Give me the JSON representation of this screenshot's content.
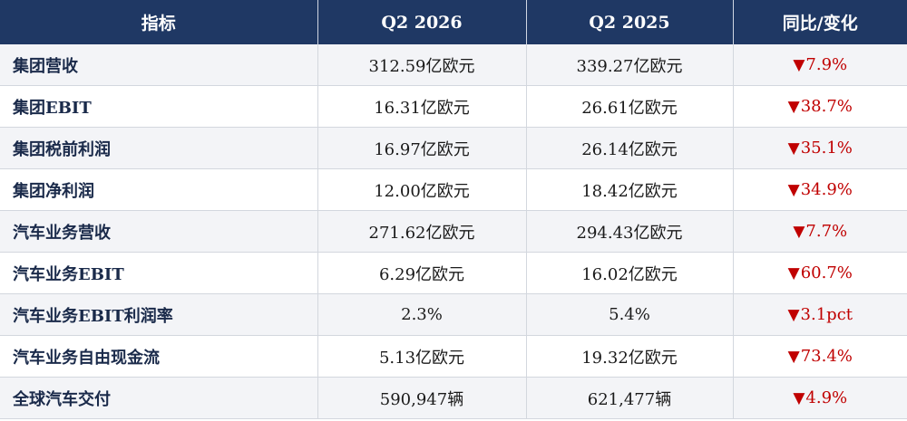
{
  "columns": [
    "指标",
    "Q2 2026",
    "Q2 2025",
    "同比/变化"
  ],
  "arrow_glyph": "▼",
  "rows": [
    {
      "metric": "集团营收",
      "q2_2026": "312.59亿欧元",
      "q2_2025": "339.27亿欧元",
      "change": "7.9%"
    },
    {
      "metric": "集团EBIT",
      "q2_2026": "16.31亿欧元",
      "q2_2025": "26.61亿欧元",
      "change": "38.7%"
    },
    {
      "metric": "集团税前利润",
      "q2_2026": "16.97亿欧元",
      "q2_2025": "26.14亿欧元",
      "change": "35.1%"
    },
    {
      "metric": "集团净利润",
      "q2_2026": "12.00亿欧元",
      "q2_2025": "18.42亿欧元",
      "change": "34.9%"
    },
    {
      "metric": "汽车业务营收",
      "q2_2026": "271.62亿欧元",
      "q2_2025": "294.43亿欧元",
      "change": "7.7%"
    },
    {
      "metric": "汽车业务EBIT",
      "q2_2026": "6.29亿欧元",
      "q2_2025": "16.02亿欧元",
      "change": "60.7%"
    },
    {
      "metric": "汽车业务EBIT利润率",
      "q2_2026": "2.3%",
      "q2_2025": "5.4%",
      "change": "3.1pct"
    },
    {
      "metric": "汽车业务自由现金流",
      "q2_2026": "5.13亿欧元",
      "q2_2025": "19.32亿欧元",
      "change": "73.4%"
    },
    {
      "metric": "全球汽车交付",
      "q2_2026": "590,947辆",
      "q2_2025": "621,477辆",
      "change": "4.9%"
    }
  ],
  "colors": {
    "header_bg": "#1f3864",
    "header_text": "#ffffff",
    "decline": "#c00000",
    "row_alt": "#f3f4f7"
  }
}
